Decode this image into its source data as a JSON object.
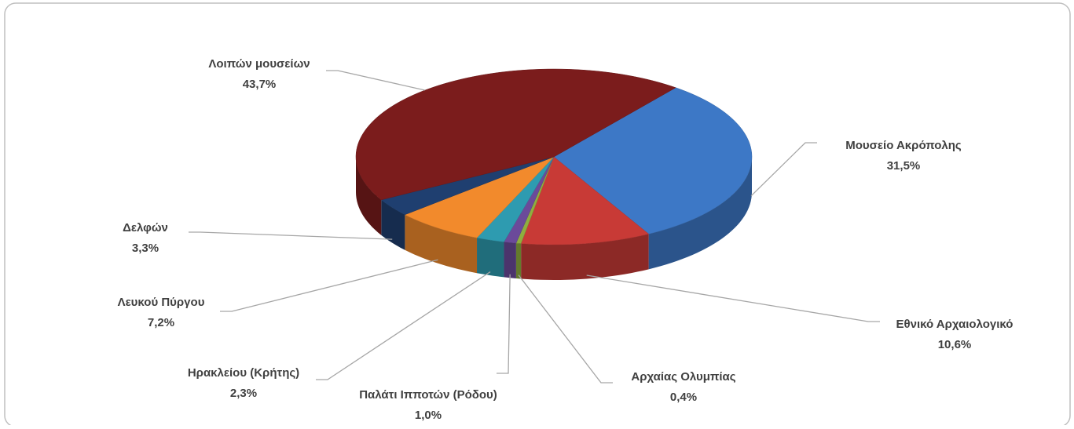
{
  "chart_data": {
    "type": "pie",
    "categories": [
      "Μουσείο Ακρόπολης",
      "Εθνικό Αρχαιολογικό",
      "Αρχαίας Ολυμπίας",
      "Παλάτι Ιπποτών (Ρόδου)",
      "Ηρακλείου (Κρήτης)",
      "Λευκού Πύργου",
      "Δελφών",
      "Λοιπών μουσείων"
    ],
    "values": [
      31.5,
      10.6,
      0.4,
      1.0,
      2.3,
      7.2,
      3.3,
      43.7
    ],
    "value_labels": [
      "31,5%",
      "10,6%",
      "0,4%",
      "1,0%",
      "2,3%",
      "7,2%",
      "3,3%",
      "43,7%"
    ],
    "colors": [
      "#3d78c6",
      "#c83a36",
      "#8fae3f",
      "#6b4a9a",
      "#2e9bb0",
      "#f28a2c",
      "#1f3f70",
      "#7b1c1c"
    ]
  }
}
